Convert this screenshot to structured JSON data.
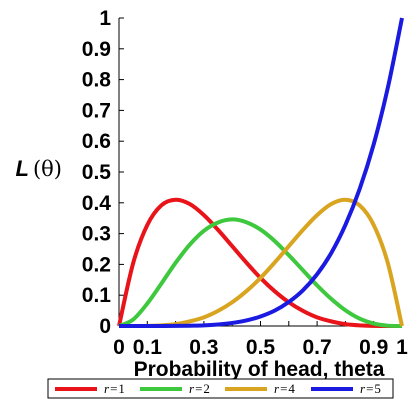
{
  "chart_data": {
    "type": "line",
    "xlabel": "Probability of head, theta",
    "ylabel": {
      "symbol": "L",
      "open": "(",
      "arg": "θ",
      "close": ")"
    },
    "xlim": [
      0,
      1
    ],
    "ylim": [
      0,
      1
    ],
    "x_ticks": [
      {
        "value": 0,
        "label": "0"
      },
      {
        "value": 0.1,
        "label": "0.1"
      },
      {
        "value": 0.3,
        "label": "0.3"
      },
      {
        "value": 0.5,
        "label": "0.5"
      },
      {
        "value": 0.7,
        "label": "0.7"
      },
      {
        "value": 0.9,
        "label": "0.9"
      },
      {
        "value": 1,
        "label": "1"
      }
    ],
    "x_minor_ticks": [
      0.2,
      0.4,
      0.6,
      0.8
    ],
    "y_ticks": [
      {
        "value": 0,
        "label": "0"
      },
      {
        "value": 0.1,
        "label": "0.1"
      },
      {
        "value": 0.2,
        "label": "0.2"
      },
      {
        "value": 0.3,
        "label": "0.3"
      },
      {
        "value": 0.4,
        "label": "0.4"
      },
      {
        "value": 0.5,
        "label": "0.5"
      },
      {
        "value": 0.6,
        "label": "0.6"
      },
      {
        "value": 0.7,
        "label": "0.7"
      },
      {
        "value": 0.8,
        "label": "0.8"
      },
      {
        "value": 0.9,
        "label": "0.9"
      },
      {
        "value": 1,
        "label": "1"
      }
    ],
    "grid": false,
    "legend_position": "bottom",
    "series": [
      {
        "name": "r = 1",
        "var": "r",
        "eq": "=",
        "num": "1",
        "color": "#e8141a",
        "x": [
          0,
          0.05,
          0.1,
          0.15,
          0.2,
          0.25,
          0.3,
          0.35,
          0.4,
          0.45,
          0.5,
          0.55,
          0.6,
          0.65,
          0.7,
          0.75,
          0.8,
          0.85,
          0.9,
          0.95,
          1
        ],
        "y": [
          0,
          0.204,
          0.328,
          0.392,
          0.41,
          0.396,
          0.36,
          0.312,
          0.259,
          0.206,
          0.156,
          0.113,
          0.077,
          0.049,
          0.028,
          0.015,
          0.006,
          0.002,
          0.0005,
          3e-05,
          0
        ]
      },
      {
        "name": "r = 2",
        "var": "r",
        "eq": "=",
        "num": "2",
        "color": "#3dc83d",
        "x": [
          0,
          0.05,
          0.1,
          0.15,
          0.2,
          0.25,
          0.3,
          0.35,
          0.4,
          0.45,
          0.5,
          0.55,
          0.6,
          0.65,
          0.7,
          0.75,
          0.8,
          0.85,
          0.9,
          0.95,
          1
        ],
        "y": [
          0,
          0.021,
          0.073,
          0.138,
          0.205,
          0.264,
          0.309,
          0.336,
          0.346,
          0.337,
          0.313,
          0.276,
          0.23,
          0.181,
          0.132,
          0.088,
          0.051,
          0.024,
          0.008,
          0.001,
          0
        ]
      },
      {
        "name": "r = 4",
        "var": "r",
        "eq": "=",
        "num": "4",
        "color": "#d9a520",
        "x": [
          0,
          0.05,
          0.1,
          0.15,
          0.2,
          0.25,
          0.3,
          0.35,
          0.4,
          0.45,
          0.5,
          0.55,
          0.6,
          0.65,
          0.7,
          0.75,
          0.8,
          0.85,
          0.9,
          0.95,
          1
        ],
        "y": [
          0,
          3e-05,
          0.0005,
          0.002,
          0.006,
          0.015,
          0.028,
          0.049,
          0.077,
          0.113,
          0.156,
          0.206,
          0.259,
          0.312,
          0.36,
          0.396,
          0.41,
          0.392,
          0.328,
          0.204,
          0
        ]
      },
      {
        "name": "r = 5",
        "var": "r",
        "eq": "=",
        "num": "5",
        "color": "#1a1ae0",
        "x": [
          0,
          0.05,
          0.1,
          0.15,
          0.2,
          0.25,
          0.3,
          0.35,
          0.4,
          0.45,
          0.5,
          0.55,
          0.6,
          0.65,
          0.7,
          0.75,
          0.8,
          0.85,
          0.9,
          0.95,
          1
        ],
        "y": [
          0,
          3e-07,
          1e-05,
          8e-05,
          0.0003,
          0.001,
          0.002,
          0.005,
          0.01,
          0.018,
          0.031,
          0.05,
          0.078,
          0.116,
          0.168,
          0.237,
          0.328,
          0.444,
          0.59,
          0.774,
          1
        ]
      }
    ]
  }
}
